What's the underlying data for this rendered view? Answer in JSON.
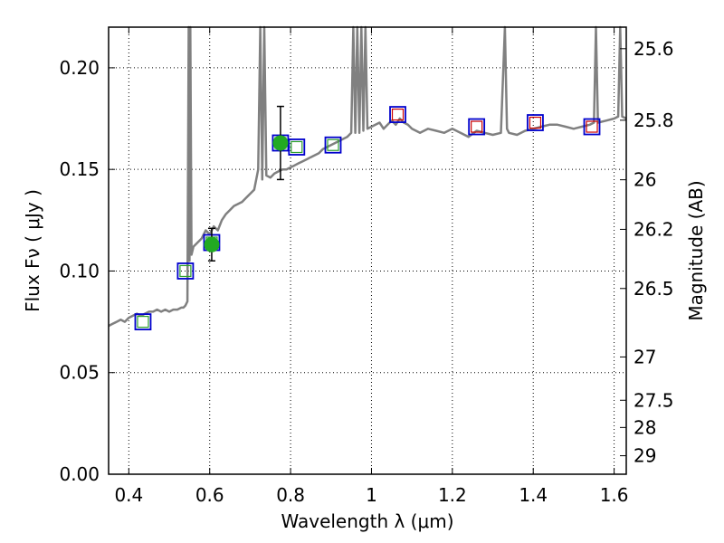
{
  "chart_data": {
    "type": "scatter",
    "title": "",
    "xlabel": "Wavelength  λ (μm)",
    "ylabel": "Flux  Fν  ( μJy )",
    "ylabel_right": "Magnitude (AB)",
    "xlim": [
      0.35,
      1.63
    ],
    "ylim": [
      0.0,
      0.22
    ],
    "grid": true,
    "grid_style": "dotted",
    "x_ticks": [
      0.4,
      0.6,
      0.8,
      1.0,
      1.2,
      1.4,
      1.6
    ],
    "x_tick_labels": [
      "0.4",
      "0.6",
      "0.8",
      "1",
      "1.2",
      "1.4",
      "1.6"
    ],
    "y_ticks": [
      0.0,
      0.05,
      0.1,
      0.15,
      0.2
    ],
    "y_tick_labels": [
      "0.00",
      "0.05",
      "0.10",
      "0.15",
      "0.20"
    ],
    "right_ticks": [
      {
        "label": "25.6",
        "flux": 0.2094
      },
      {
        "label": "25.8",
        "flux": 0.1742
      },
      {
        "label": "26",
        "flux": 0.1449
      },
      {
        "label": "26.2",
        "flux": 0.1205
      },
      {
        "label": "26.5",
        "flux": 0.0914
      },
      {
        "label": "27",
        "flux": 0.0577
      },
      {
        "label": "27.5",
        "flux": 0.0364
      },
      {
        "label": "28",
        "flux": 0.023
      },
      {
        "label": "29",
        "flux": 0.0091
      }
    ],
    "series": [
      {
        "name": "model spectrum",
        "kind": "line",
        "color": "#808080",
        "x": [
          0.35,
          0.36,
          0.37,
          0.38,
          0.39,
          0.4,
          0.41,
          0.42,
          0.43,
          0.44,
          0.45,
          0.46,
          0.47,
          0.48,
          0.49,
          0.5,
          0.51,
          0.52,
          0.53,
          0.535,
          0.54,
          0.545,
          0.548,
          0.55,
          0.552,
          0.555,
          0.56,
          0.57,
          0.58,
          0.59,
          0.6,
          0.61,
          0.62,
          0.63,
          0.64,
          0.65,
          0.66,
          0.67,
          0.68,
          0.69,
          0.7,
          0.71,
          0.72,
          0.725,
          0.73,
          0.735,
          0.74,
          0.75,
          0.76,
          0.77,
          0.78,
          0.79,
          0.8,
          0.81,
          0.82,
          0.83,
          0.84,
          0.85,
          0.86,
          0.87,
          0.88,
          0.89,
          0.9,
          0.91,
          0.92,
          0.93,
          0.94,
          0.95,
          0.955,
          0.96,
          0.965,
          0.97,
          0.975,
          0.98,
          0.985,
          0.99,
          1.0,
          1.01,
          1.02,
          1.03,
          1.04,
          1.05,
          1.06,
          1.07,
          1.08,
          1.09,
          1.1,
          1.12,
          1.14,
          1.16,
          1.18,
          1.2,
          1.22,
          1.24,
          1.26,
          1.28,
          1.3,
          1.32,
          1.33,
          1.335,
          1.34,
          1.36,
          1.38,
          1.4,
          1.42,
          1.44,
          1.46,
          1.48,
          1.5,
          1.52,
          1.54,
          1.55,
          1.555,
          1.56,
          1.58,
          1.6,
          1.61,
          1.615,
          1.62,
          1.63
        ],
        "y": [
          0.073,
          0.074,
          0.075,
          0.076,
          0.075,
          0.077,
          0.078,
          0.079,
          0.078,
          0.079,
          0.08,
          0.08,
          0.081,
          0.08,
          0.081,
          0.08,
          0.081,
          0.081,
          0.082,
          0.082,
          0.083,
          0.085,
          0.22,
          0.105,
          0.22,
          0.108,
          0.112,
          0.114,
          0.116,
          0.12,
          0.118,
          0.122,
          0.12,
          0.125,
          0.128,
          0.13,
          0.132,
          0.133,
          0.134,
          0.136,
          0.138,
          0.14,
          0.15,
          0.22,
          0.145,
          0.22,
          0.147,
          0.146,
          0.148,
          0.149,
          0.15,
          0.15,
          0.151,
          0.152,
          0.153,
          0.154,
          0.155,
          0.156,
          0.157,
          0.158,
          0.16,
          0.161,
          0.162,
          0.163,
          0.164,
          0.165,
          0.166,
          0.168,
          0.22,
          0.168,
          0.22,
          0.168,
          0.22,
          0.169,
          0.22,
          0.17,
          0.171,
          0.172,
          0.173,
          0.17,
          0.172,
          0.174,
          0.172,
          0.175,
          0.173,
          0.172,
          0.17,
          0.168,
          0.17,
          0.169,
          0.168,
          0.17,
          0.168,
          0.166,
          0.169,
          0.168,
          0.167,
          0.168,
          0.22,
          0.17,
          0.168,
          0.167,
          0.169,
          0.17,
          0.171,
          0.172,
          0.172,
          0.171,
          0.17,
          0.171,
          0.172,
          0.173,
          0.22,
          0.173,
          0.174,
          0.175,
          0.176,
          0.22,
          0.176,
          0.175
        ]
      },
      {
        "name": "photometry (blue squares)",
        "kind": "marker",
        "marker": "square",
        "color": "#0000cc",
        "x": [
          0.435,
          0.54,
          0.605,
          0.775,
          0.815,
          0.905,
          1.065,
          1.26,
          1.405,
          1.545
        ],
        "y": [
          0.075,
          0.1,
          0.114,
          0.163,
          0.161,
          0.162,
          0.177,
          0.171,
          0.173,
          0.171
        ]
      },
      {
        "name": "model magnitudes (green squares)",
        "kind": "marker",
        "marker": "square",
        "color": "#2ca02c",
        "x": [
          0.435,
          0.54,
          0.605,
          0.775,
          0.815,
          0.905
        ],
        "y": [
          0.075,
          0.1,
          0.114,
          0.163,
          0.161,
          0.162
        ]
      },
      {
        "name": "model magnitudes (red squares)",
        "kind": "marker",
        "marker": "square",
        "color": "#cc0000",
        "x": [
          1.065,
          1.26,
          1.405,
          1.545
        ],
        "y": [
          0.177,
          0.171,
          0.173,
          0.171
        ]
      },
      {
        "name": "measured flux (green circles)",
        "kind": "errorbar",
        "marker": "circle",
        "color": "#22aa22",
        "x": [
          0.605,
          0.775
        ],
        "y": [
          0.113,
          0.163
        ],
        "yerr_low": [
          0.008,
          0.018
        ],
        "yerr_high": [
          0.008,
          0.018
        ]
      }
    ]
  }
}
